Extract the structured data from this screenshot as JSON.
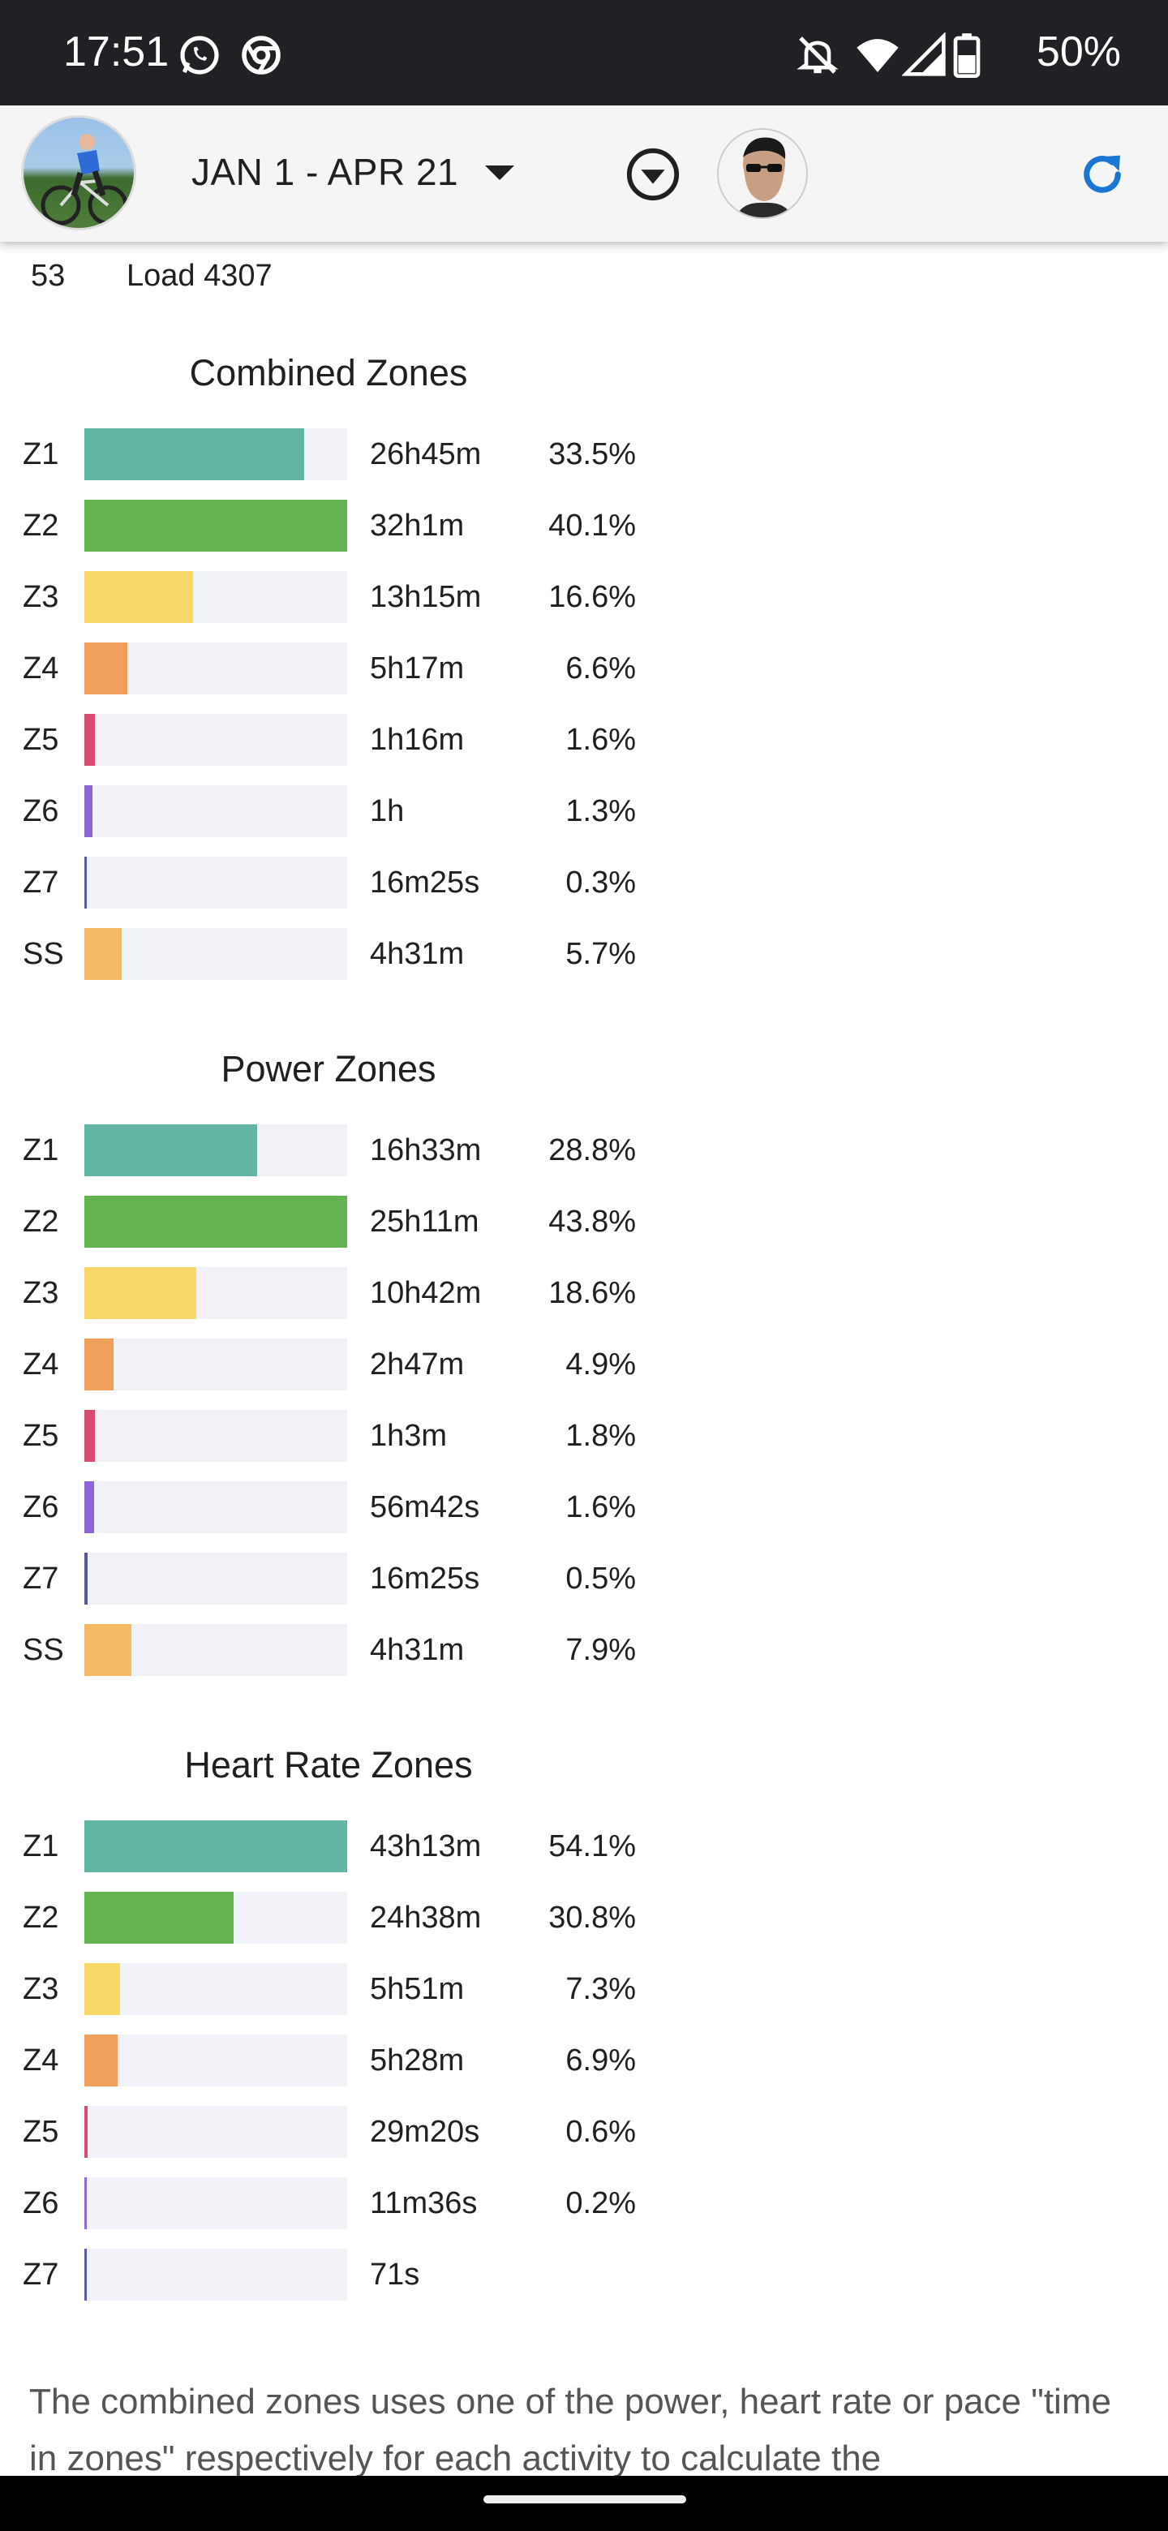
{
  "status_bar": {
    "time": "17:51",
    "battery": "50%",
    "icons": [
      "whatsapp-icon",
      "chrome-icon",
      "mute-icon",
      "wifi-icon",
      "signal-icon",
      "battery-icon"
    ]
  },
  "app_bar": {
    "date_range": "JAN 1 - APR 21",
    "icons": [
      "dropdown-caret-icon",
      "filter-circle-icon",
      "refresh-icon"
    ],
    "accent_color": "#1976d2"
  },
  "summary": {
    "count": "53",
    "load": "Load 4307"
  },
  "colors": {
    "Z1": "#62b5a2",
    "Z2": "#63b451",
    "Z3": "#f7d868",
    "Z4": "#f0a05a",
    "Z5": "#d74c72",
    "Z6": "#8d65d8",
    "Z7": "#5a5a9a",
    "SS": "#f3b964",
    "track": "#f1f1f8"
  },
  "sections": [
    {
      "title": "Combined Zones",
      "zones": [
        {
          "zone": "Z1",
          "time": "26h45m",
          "pct": "33.5%",
          "fill": 0.835
        },
        {
          "zone": "Z2",
          "time": "32h1m",
          "pct": "40.1%",
          "fill": 1.0
        },
        {
          "zone": "Z3",
          "time": "13h15m",
          "pct": "16.6%",
          "fill": 0.415
        },
        {
          "zone": "Z4",
          "time": "5h17m",
          "pct": "6.6%",
          "fill": 0.165
        },
        {
          "zone": "Z5",
          "time": "1h16m",
          "pct": "1.6%",
          "fill": 0.04
        },
        {
          "zone": "Z6",
          "time": "1h",
          "pct": "1.3%",
          "fill": 0.032
        },
        {
          "zone": "Z7",
          "time": "16m25s",
          "pct": "0.3%",
          "fill": 0.008
        },
        {
          "zone": "SS",
          "time": "4h31m",
          "pct": "5.7%",
          "fill": 0.142
        }
      ]
    },
    {
      "title": "Power Zones",
      "zones": [
        {
          "zone": "Z1",
          "time": "16h33m",
          "pct": "28.8%",
          "fill": 0.658
        },
        {
          "zone": "Z2",
          "time": "25h11m",
          "pct": "43.8%",
          "fill": 1.0
        },
        {
          "zone": "Z3",
          "time": "10h42m",
          "pct": "18.6%",
          "fill": 0.425
        },
        {
          "zone": "Z4",
          "time": "2h47m",
          "pct": "4.9%",
          "fill": 0.112
        },
        {
          "zone": "Z5",
          "time": "1h3m",
          "pct": "1.8%",
          "fill": 0.041
        },
        {
          "zone": "Z6",
          "time": "56m42s",
          "pct": "1.6%",
          "fill": 0.037
        },
        {
          "zone": "Z7",
          "time": "16m25s",
          "pct": "0.5%",
          "fill": 0.011
        },
        {
          "zone": "SS",
          "time": "4h31m",
          "pct": "7.9%",
          "fill": 0.18
        }
      ]
    },
    {
      "title": "Heart Rate Zones",
      "zones": [
        {
          "zone": "Z1",
          "time": "43h13m",
          "pct": "54.1%",
          "fill": 1.0
        },
        {
          "zone": "Z2",
          "time": "24h38m",
          "pct": "30.8%",
          "fill": 0.569
        },
        {
          "zone": "Z3",
          "time": "5h51m",
          "pct": "7.3%",
          "fill": 0.135
        },
        {
          "zone": "Z4",
          "time": "5h28m",
          "pct": "6.9%",
          "fill": 0.128
        },
        {
          "zone": "Z5",
          "time": "29m20s",
          "pct": "0.6%",
          "fill": 0.011
        },
        {
          "zone": "Z6",
          "time": "11m36s",
          "pct": "0.2%",
          "fill": 0.004
        },
        {
          "zone": "Z7",
          "time": "71s",
          "pct": "",
          "fill": 0.002
        }
      ]
    }
  ],
  "footnote": "The combined zones uses one of the power, heart rate or pace \"time in zones\" respectively for each activity to calculate the"
}
